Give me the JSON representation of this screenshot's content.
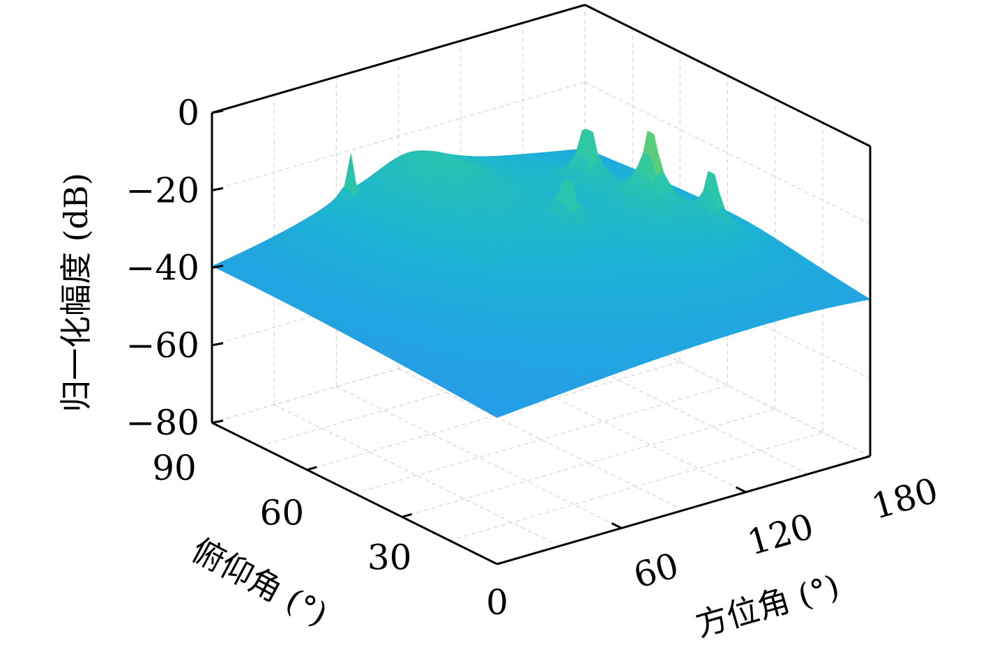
{
  "chart_data": {
    "type": "surface",
    "title": "",
    "xlabel": "方位角 (°)",
    "ylabel": "俯仰角 (°)",
    "zlabel": "归一化幅度 (dB)",
    "xlim": [
      0,
      180
    ],
    "ylim": [
      0,
      90
    ],
    "zlim": [
      -80,
      0
    ],
    "xticks": [
      60,
      120,
      180
    ],
    "yticks": [
      0,
      30,
      60,
      90
    ],
    "zticks": [
      0,
      -20,
      -40,
      -60,
      -80
    ],
    "xtick_labels": [
      "60",
      "120",
      "180"
    ],
    "ytick_labels": [
      "0",
      "30",
      "60",
      "90"
    ],
    "ztick_labels": [
      "0",
      "−20",
      "−40",
      "−60",
      "−80"
    ],
    "grid": true,
    "colormap": [
      "#3a2bc8",
      "#3b5ef0",
      "#2a8ef5",
      "#1cb5d2",
      "#2fc9a0",
      "#a8d33a"
    ],
    "floor_db": -75,
    "peaks": [
      {
        "azimuth": 64,
        "elevation": 88,
        "peak_db": -20,
        "width": 0.6
      },
      {
        "azimuth": 68,
        "elevation": 80,
        "peak_db": -45,
        "width": 3
      },
      {
        "azimuth": 72,
        "elevation": 50,
        "peak_db": -38,
        "width": 0.8
      },
      {
        "azimuth": 115,
        "elevation": 53,
        "peak_db": -12,
        "width": 0.6
      },
      {
        "azimuth": 143,
        "elevation": 65,
        "peak_db": -8,
        "width": 0.6
      },
      {
        "azimuth": 146,
        "elevation": 47,
        "peak_db": -2,
        "width": 0.5
      },
      {
        "azimuth": 160,
        "elevation": 37,
        "peak_db": -12,
        "width": 0.6
      },
      {
        "azimuth": 150,
        "elevation": 30,
        "peak_db": -52,
        "width": 6
      },
      {
        "azimuth": 95,
        "elevation": 80,
        "peak_db": -22,
        "width": 12
      },
      {
        "azimuth": 40,
        "elevation": 60,
        "peak_db": -58,
        "width": 6
      },
      {
        "azimuth": 175,
        "elevation": 70,
        "peak_db": -58,
        "width": 6
      }
    ]
  }
}
